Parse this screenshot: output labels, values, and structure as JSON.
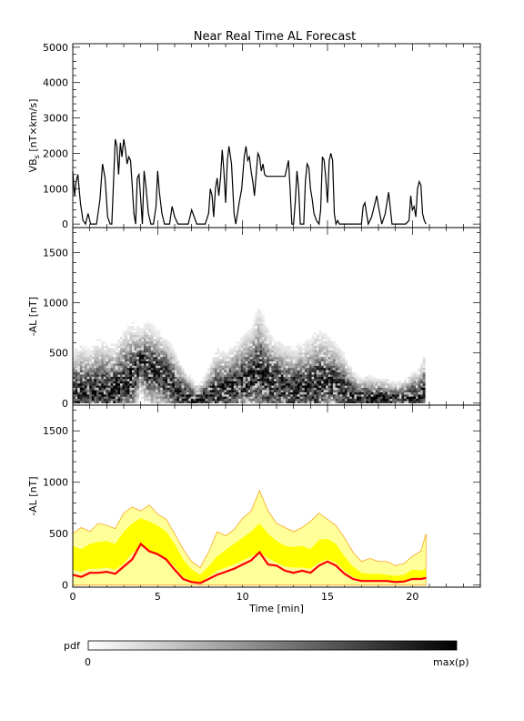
{
  "title": "Near Real Time AL Forecast",
  "colorbar": {
    "label": "pdf",
    "min_label": "0",
    "max_label": "max(p)"
  },
  "chart_data": [
    {
      "panel": "top",
      "type": "line",
      "ylabel_main": "VB",
      "ylabel_sub": "s",
      "ylabel_tail": "[nT×km/s]",
      "xlim": [
        0,
        24
      ],
      "ylim": [
        -100,
        5100
      ],
      "yticks": [
        0,
        1000,
        2000,
        3000,
        4000,
        5000
      ],
      "line_color": "#000000",
      "series": [
        {
          "x": [
            0,
            0.1,
            0.2,
            0.3,
            0.45,
            0.6,
            0.75,
            0.9,
            1.05,
            1.2,
            1.4,
            1.6,
            1.75,
            1.9,
            2.05,
            2.2,
            2.3,
            2.4,
            2.5,
            2.6,
            2.7,
            2.8,
            2.9,
            3.0,
            3.1,
            3.2,
            3.3,
            3.4,
            3.5,
            3.6,
            3.7,
            3.8,
            3.9,
            4.0,
            4.1,
            4.2,
            4.3,
            4.45,
            4.6,
            4.75,
            4.9,
            5.0,
            5.1,
            5.25,
            5.4,
            5.55,
            5.7,
            5.85,
            6.0,
            6.2,
            6.4,
            6.6,
            6.8,
            7.0,
            7.3,
            7.6,
            7.8,
            8.0,
            8.1,
            8.2,
            8.3,
            8.4,
            8.5,
            8.6,
            8.7,
            8.8,
            8.9,
            9.0,
            9.1,
            9.2,
            9.35,
            9.5,
            9.6,
            9.7,
            9.8,
            9.95,
            10.1,
            10.2,
            10.3,
            10.4,
            10.5,
            10.6,
            10.7,
            10.8,
            10.9,
            11.0,
            11.1,
            11.2,
            11.3,
            11.4,
            11.6,
            11.8,
            12.0,
            12.2,
            12.5,
            12.7,
            12.8,
            12.9,
            13.0,
            13.1,
            13.2,
            13.3,
            13.4,
            13.5,
            13.6,
            13.7,
            13.8,
            13.9,
            14.0,
            14.1,
            14.2,
            14.35,
            14.5,
            14.6,
            14.7,
            14.8,
            14.9,
            15.0,
            15.1,
            15.2,
            15.3,
            15.4,
            15.5,
            15.6,
            15.7,
            15.8,
            16.0,
            16.3,
            16.6,
            16.8,
            17.0,
            17.1,
            17.2,
            17.3,
            17.4,
            17.6,
            17.8,
            17.9,
            18.0,
            18.2,
            18.4,
            18.6,
            18.8,
            19.0,
            19.2,
            19.4,
            19.6,
            19.8,
            19.9,
            20.0,
            20.1,
            20.2,
            20.3,
            20.4,
            20.5,
            20.6,
            20.7,
            20.8
          ],
          "y": [
            1500,
            800,
            1200,
            1400,
            600,
            100,
            0,
            300,
            0,
            0,
            0,
            700,
            1700,
            1300,
            200,
            0,
            0,
            1200,
            2400,
            2200,
            1400,
            2300,
            1900,
            2400,
            2100,
            1700,
            1900,
            1800,
            1100,
            300,
            0,
            1300,
            1400,
            700,
            0,
            1500,
            1100,
            300,
            0,
            0,
            500,
            1500,
            900,
            300,
            0,
            0,
            0,
            500,
            200,
            0,
            0,
            0,
            0,
            400,
            0,
            0,
            0,
            300,
            1000,
            800,
            200,
            1000,
            1300,
            800,
            1300,
            2100,
            1500,
            600,
            1800,
            2200,
            1700,
            300,
            0,
            300,
            600,
            1000,
            1900,
            2200,
            1800,
            1900,
            1500,
            1200,
            800,
            1400,
            2000,
            1900,
            1500,
            1700,
            1400,
            1350,
            1350,
            1350,
            1350,
            1350,
            1350,
            1800,
            1000,
            0,
            0,
            600,
            1500,
            1000,
            0,
            0,
            0,
            1200,
            1700,
            1600,
            1000,
            700,
            300,
            100,
            0,
            400,
            1900,
            1800,
            1300,
            600,
            1800,
            2000,
            1800,
            300,
            0,
            100,
            0,
            0,
            0,
            0,
            0,
            0,
            0,
            500,
            600,
            300,
            0,
            200,
            600,
            800,
            500,
            0,
            300,
            900,
            0,
            0,
            0,
            0,
            0,
            100,
            800,
            400,
            500,
            200,
            1000,
            1200,
            1100,
            300,
            100,
            0
          ]
        }
      ]
    },
    {
      "panel": "middle",
      "type": "heatmap",
      "ylabel": "-AL [nT]",
      "xlim": [
        0,
        24
      ],
      "ylim": [
        -20,
        1750
      ],
      "yticks": [
        0,
        500,
        1000,
        1500
      ],
      "colorscale": [
        "#ffffff",
        "#000000"
      ],
      "x_extent": [
        0,
        20.8
      ]
    },
    {
      "panel": "bottom",
      "type": "area",
      "ylabel": "-AL [nT]",
      "xlabel": "Time [min]",
      "xlim": [
        0,
        24
      ],
      "ylim": [
        -20,
        1750
      ],
      "xticks": [
        0,
        5,
        10,
        15,
        20
      ],
      "yticks": [
        0,
        500,
        1000,
        1500
      ],
      "colors": {
        "outer": "#ffff99",
        "inner": "#ffff00",
        "outer_edge": "#f5a623",
        "median": "#ff0000"
      },
      "x": [
        0,
        0.5,
        1,
        1.5,
        2,
        2.5,
        3,
        3.5,
        4,
        4.5,
        5,
        5.5,
        6,
        6.5,
        7,
        7.5,
        8,
        8.5,
        9,
        9.5,
        10,
        10.5,
        11,
        11.5,
        12,
        12.5,
        13,
        13.5,
        14,
        14.5,
        15,
        15.5,
        16,
        16.5,
        17,
        17.5,
        18,
        18.5,
        19,
        19.5,
        20,
        20.5,
        20.8
      ],
      "median": [
        100,
        80,
        120,
        120,
        130,
        110,
        180,
        250,
        400,
        330,
        300,
        250,
        150,
        60,
        30,
        20,
        60,
        100,
        130,
        160,
        200,
        240,
        320,
        200,
        190,
        140,
        120,
        140,
        120,
        190,
        230,
        190,
        110,
        60,
        40,
        40,
        40,
        40,
        30,
        35,
        60,
        60,
        70
      ],
      "inner_lower": [
        150,
        130,
        160,
        160,
        170,
        150,
        210,
        310,
        380,
        330,
        300,
        260,
        180,
        80,
        40,
        30,
        80,
        140,
        170,
        200,
        240,
        280,
        320,
        260,
        220,
        180,
        170,
        170,
        160,
        220,
        250,
        220,
        140,
        80,
        50,
        50,
        50,
        50,
        40,
        40,
        70,
        70,
        80
      ],
      "inner_upper": [
        380,
        350,
        400,
        420,
        430,
        400,
        520,
        600,
        650,
        620,
        580,
        520,
        400,
        250,
        150,
        100,
        180,
        280,
        340,
        400,
        460,
        520,
        600,
        500,
        430,
        380,
        370,
        380,
        350,
        440,
        450,
        400,
        280,
        180,
        120,
        110,
        110,
        100,
        90,
        100,
        150,
        140,
        160
      ],
      "outer_upper": [
        500,
        560,
        520,
        600,
        580,
        550,
        700,
        760,
        720,
        780,
        690,
        640,
        500,
        350,
        230,
        170,
        320,
        520,
        480,
        540,
        650,
        720,
        920,
        720,
        600,
        560,
        520,
        560,
        620,
        700,
        640,
        580,
        460,
        320,
        230,
        260,
        230,
        230,
        190,
        210,
        280,
        330,
        500
      ]
    }
  ]
}
